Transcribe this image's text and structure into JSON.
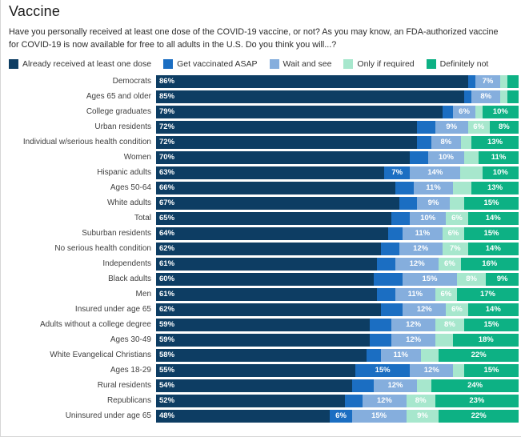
{
  "header": {
    "title": "Vaccine",
    "subtitle": "Have you personally received at least one dose of the COVID-19 vaccine, or not? As you may know, an FDA-authorized vaccine for COVID-19 is now available for free to all adults in the U.S. Do you think you will...?"
  },
  "colors": {
    "already_received": "#0d3d63",
    "get_vaccinated_asap": "#1b6ec2",
    "wait_and_see": "#85aedd",
    "only_if_required": "#a7e7cd",
    "definitely_not": "#0db184",
    "category_text": "#404040",
    "frame_border": "#d6d6d6"
  },
  "chart_data": {
    "type": "bar",
    "stacked": true,
    "orientation": "horizontal",
    "x_range_percent": [
      0,
      100
    ],
    "grid": false,
    "legend_position": "top",
    "series_names": [
      "Already received at least one dose",
      "Get vaccinated ASAP",
      "Wait and see",
      "Only if required",
      "Definitely not"
    ],
    "series_colors": [
      "#0d3d63",
      "#1b6ec2",
      "#85aedd",
      "#a7e7cd",
      "#0db184"
    ],
    "categories": [
      "Democrats",
      "Ages 65 and older",
      "College graduates",
      "Urban residents",
      "Individual w/serious health condition",
      "Women",
      "Hispanic adults",
      "Ages 50-64",
      "White adults",
      "Total",
      "Suburban residents",
      "No serious health condition",
      "Independents",
      "Black adults",
      "Men",
      "Insured under age 65",
      "Adults without a college degree",
      "Ages 30-49",
      "White Evangelical Christians",
      "Ages 18-29",
      "Rural residents",
      "Republicans",
      "Uninsured under age 65"
    ],
    "rows": [
      {
        "category": "Democrats",
        "values": [
          86,
          2,
          7,
          2,
          3
        ],
        "labels": [
          "86%",
          null,
          "7%",
          null,
          null
        ]
      },
      {
        "category": "Ages 65 and older",
        "values": [
          85,
          2,
          8,
          2,
          3
        ],
        "labels": [
          "85%",
          null,
          "8%",
          null,
          null
        ]
      },
      {
        "category": "College graduates",
        "values": [
          79,
          3,
          6,
          2,
          10
        ],
        "labels": [
          "79%",
          null,
          "6%",
          null,
          "10%"
        ]
      },
      {
        "category": "Urban residents",
        "values": [
          72,
          5,
          9,
          6,
          8
        ],
        "labels": [
          "72%",
          null,
          "9%",
          "6%",
          "8%"
        ]
      },
      {
        "category": "Individual w/serious health condition",
        "values": [
          72,
          4,
          8,
          3,
          13
        ],
        "labels": [
          "72%",
          null,
          "8%",
          null,
          "13%"
        ]
      },
      {
        "category": "Women",
        "values": [
          70,
          5,
          10,
          4,
          11
        ],
        "labels": [
          "70%",
          null,
          "10%",
          null,
          "11%"
        ]
      },
      {
        "category": "Hispanic adults",
        "values": [
          63,
          7,
          14,
          6,
          10
        ],
        "labels": [
          "63%",
          "7%",
          "14%",
          null,
          "10%"
        ]
      },
      {
        "category": "Ages 50-64",
        "values": [
          66,
          5,
          11,
          5,
          13
        ],
        "labels": [
          "66%",
          null,
          "11%",
          null,
          "13%"
        ]
      },
      {
        "category": "White adults",
        "values": [
          67,
          5,
          9,
          4,
          15
        ],
        "labels": [
          "67%",
          null,
          "9%",
          null,
          "15%"
        ]
      },
      {
        "category": "Total",
        "values": [
          65,
          5,
          10,
          6,
          14
        ],
        "labels": [
          "65%",
          null,
          "10%",
          "6%",
          "14%"
        ]
      },
      {
        "category": "Suburban residents",
        "values": [
          64,
          4,
          11,
          6,
          15
        ],
        "labels": [
          "64%",
          null,
          "11%",
          "6%",
          "15%"
        ]
      },
      {
        "category": "No serious health condition",
        "values": [
          62,
          5,
          12,
          7,
          14
        ],
        "labels": [
          "62%",
          null,
          "12%",
          "7%",
          "14%"
        ]
      },
      {
        "category": "Independents",
        "values": [
          61,
          5,
          12,
          6,
          16
        ],
        "labels": [
          "61%",
          null,
          "12%",
          "6%",
          "16%"
        ]
      },
      {
        "category": "Black adults",
        "values": [
          60,
          8,
          15,
          8,
          9
        ],
        "labels": [
          "60%",
          null,
          "15%",
          "8%",
          "9%"
        ]
      },
      {
        "category": "Men",
        "values": [
          61,
          5,
          11,
          6,
          17
        ],
        "labels": [
          "61%",
          null,
          "11%",
          "6%",
          "17%"
        ]
      },
      {
        "category": "Insured under age 65",
        "values": [
          62,
          6,
          12,
          6,
          14
        ],
        "labels": [
          "62%",
          null,
          "12%",
          "6%",
          "14%"
        ]
      },
      {
        "category": "Adults without a college degree",
        "values": [
          59,
          6,
          12,
          8,
          15
        ],
        "labels": [
          "59%",
          null,
          "12%",
          "8%",
          "15%"
        ]
      },
      {
        "category": "Ages 30-49",
        "values": [
          59,
          6,
          12,
          5,
          18
        ],
        "labels": [
          "59%",
          null,
          "12%",
          null,
          "18%"
        ]
      },
      {
        "category": "White Evangelical Christians",
        "values": [
          58,
          4,
          11,
          5,
          22
        ],
        "labels": [
          "58%",
          null,
          "11%",
          null,
          "22%"
        ]
      },
      {
        "category": "Ages 18-29",
        "values": [
          55,
          15,
          12,
          3,
          15
        ],
        "labels": [
          "55%",
          "15%",
          "12%",
          null,
          "15%"
        ]
      },
      {
        "category": "Rural residents",
        "values": [
          54,
          6,
          12,
          4,
          24
        ],
        "labels": [
          "54%",
          null,
          "12%",
          null,
          "24%"
        ]
      },
      {
        "category": "Republicans",
        "values": [
          52,
          5,
          12,
          8,
          23
        ],
        "labels": [
          "52%",
          null,
          "12%",
          "8%",
          "23%"
        ]
      },
      {
        "category": "Uninsured under age 65",
        "values": [
          48,
          6,
          15,
          9,
          22
        ],
        "labels": [
          "48%",
          "6%",
          "15%",
          "9%",
          "22%"
        ]
      }
    ]
  }
}
